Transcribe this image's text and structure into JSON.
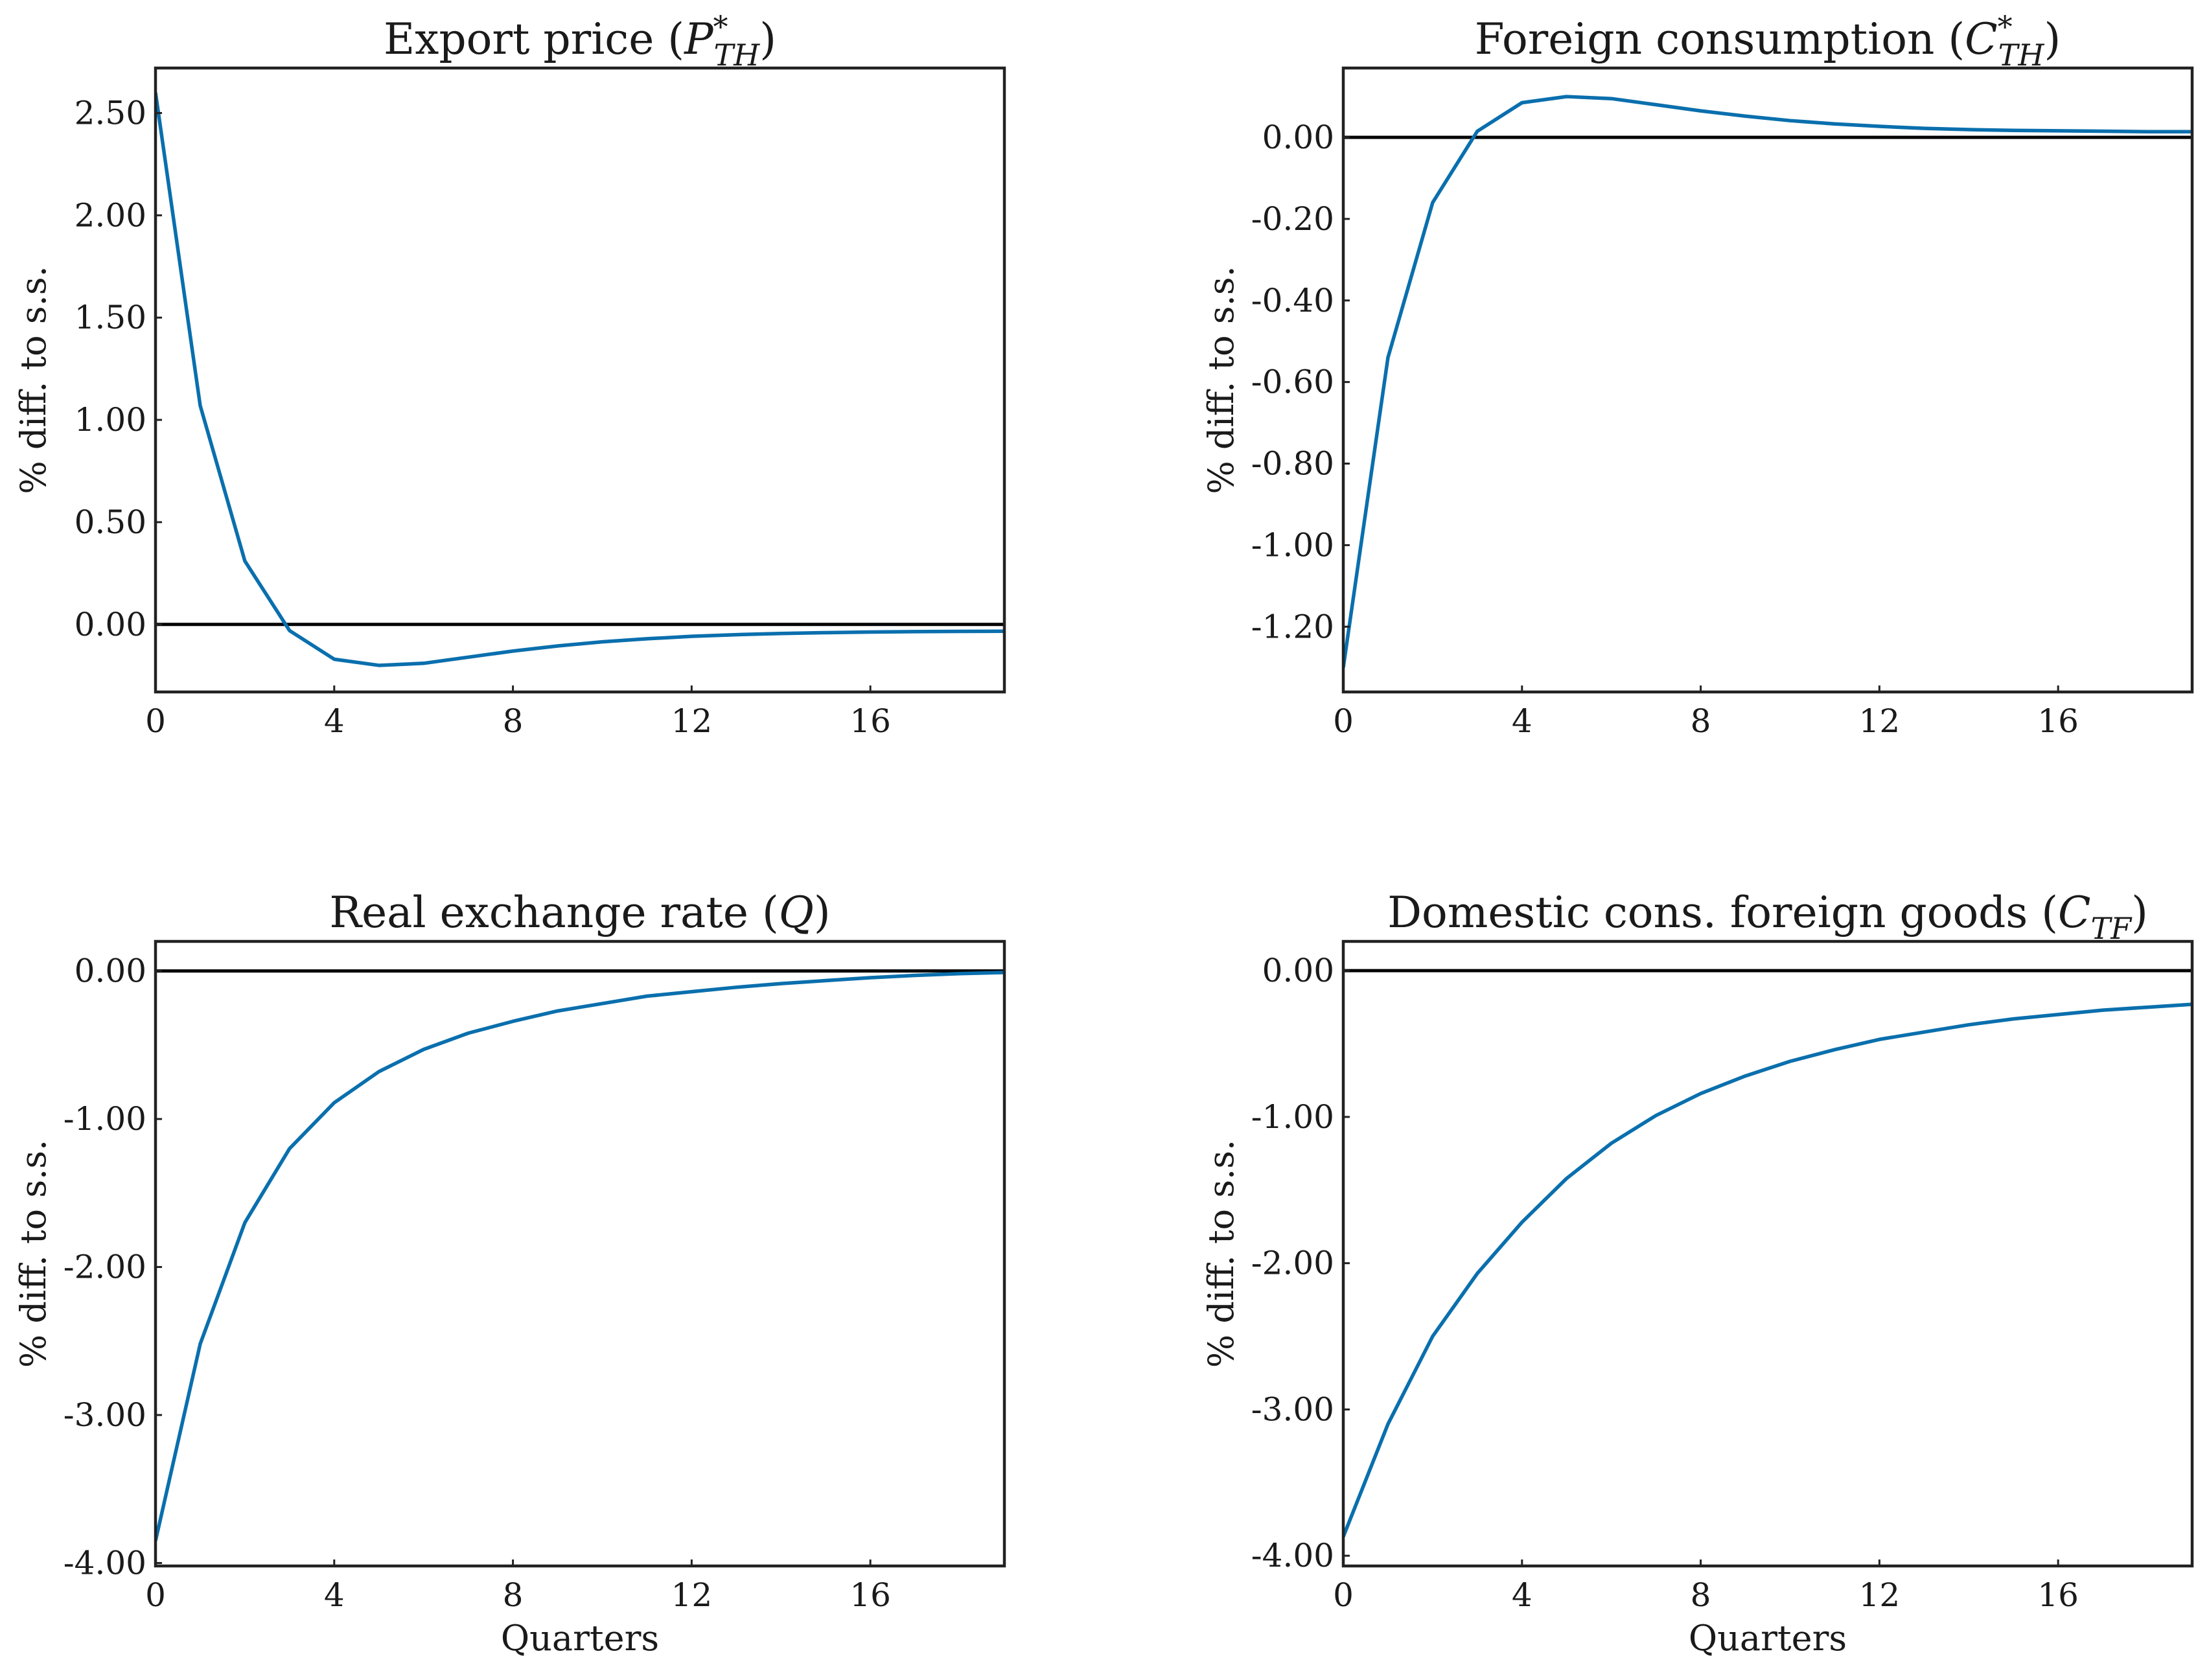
{
  "chart_data": [
    {
      "type": "line",
      "title": "Export price (P*TH)",
      "title_parts": [
        {
          "t": "Export price (",
          "style": "normal"
        },
        {
          "t": "P",
          "style": "italic"
        },
        {
          "t": "*",
          "style": "sup"
        },
        {
          "t": "TH",
          "style": "sub"
        },
        {
          "t": ")",
          "style": "normal"
        }
      ],
      "xlabel": "",
      "ylabel": "% diff. to s.s.",
      "xlim": [
        0,
        19
      ],
      "ylim": [
        -0.33,
        2.72
      ],
      "xticks": [
        0,
        4,
        8,
        12,
        16
      ],
      "xtick_labels": [
        "0",
        "4",
        "8",
        "12",
        "16"
      ],
      "yticks": [
        0,
        0.5,
        1,
        1.5,
        2,
        2.5
      ],
      "ytick_labels": [
        "0.00",
        "0.50",
        "1.00",
        "1.50",
        "2.00",
        "2.50"
      ],
      "zero_line": 0,
      "x": [
        0,
        1,
        2,
        3,
        4,
        5,
        6,
        7,
        8,
        9,
        10,
        11,
        12,
        13,
        14,
        15,
        16,
        17,
        18,
        19
      ],
      "series": [
        {
          "values": [
            2.6,
            1.07,
            0.31,
            -0.03,
            -0.17,
            -0.2,
            -0.19,
            -0.16,
            -0.13,
            -0.105,
            -0.085,
            -0.07,
            -0.058,
            -0.05,
            -0.044,
            -0.04,
            -0.037,
            -0.035,
            -0.034,
            -0.033
          ],
          "color": "#0a6fad"
        }
      ]
    },
    {
      "type": "line",
      "title": "Foreign consumption (C*TH)",
      "title_parts": [
        {
          "t": "Foreign consumption (",
          "style": "normal"
        },
        {
          "t": "C",
          "style": "italic"
        },
        {
          "t": "*",
          "style": "sup"
        },
        {
          "t": "TH",
          "style": "sub"
        },
        {
          "t": ")",
          "style": "normal"
        }
      ],
      "xlabel": "",
      "ylabel": "% diff. to s.s.",
      "xlim": [
        0,
        19
      ],
      "ylim": [
        -1.36,
        0.17
      ],
      "xticks": [
        0,
        4,
        8,
        12,
        16
      ],
      "xtick_labels": [
        "0",
        "4",
        "8",
        "12",
        "16"
      ],
      "yticks": [
        -1.2,
        -1.0,
        -0.8,
        -0.6,
        -0.4,
        -0.2,
        0
      ],
      "ytick_labels": [
        "-1.20",
        "-1.00",
        "-0.80",
        "-0.60",
        "-0.40",
        "-0.20",
        "0.00"
      ],
      "zero_line": 0,
      "x": [
        0,
        1,
        2,
        3,
        4,
        5,
        6,
        7,
        8,
        9,
        10,
        11,
        12,
        13,
        14,
        15,
        16,
        17,
        18,
        19
      ],
      "series": [
        {
          "values": [
            -1.3,
            -0.54,
            -0.16,
            0.015,
            0.085,
            0.1,
            0.095,
            0.08,
            0.065,
            0.052,
            0.041,
            0.033,
            0.027,
            0.022,
            0.019,
            0.017,
            0.016,
            0.015,
            0.014,
            0.014
          ],
          "color": "#0a6fad"
        }
      ]
    },
    {
      "type": "line",
      "title": "Real exchange rate (Q)",
      "title_parts": [
        {
          "t": "Real exchange rate (",
          "style": "normal"
        },
        {
          "t": "Q",
          "style": "italic"
        },
        {
          "t": ")",
          "style": "normal"
        }
      ],
      "xlabel": "Quarters",
      "ylabel": "% diff. to s.s.",
      "xlim": [
        0,
        19
      ],
      "ylim": [
        -4.02,
        0.2
      ],
      "xticks": [
        0,
        4,
        8,
        12,
        16
      ],
      "xtick_labels": [
        "0",
        "4",
        "8",
        "12",
        "16"
      ],
      "yticks": [
        -4,
        -3,
        -2,
        -1,
        0
      ],
      "ytick_labels": [
        "-4.00",
        "-3.00",
        "-2.00",
        "-1.00",
        "0.00"
      ],
      "zero_line": 0,
      "x": [
        0,
        1,
        2,
        3,
        4,
        5,
        6,
        7,
        8,
        9,
        10,
        11,
        12,
        13,
        14,
        15,
        16,
        17,
        18,
        19
      ],
      "series": [
        {
          "values": [
            -3.85,
            -2.52,
            -1.7,
            -1.2,
            -0.89,
            -0.68,
            -0.53,
            -0.42,
            -0.34,
            -0.27,
            -0.22,
            -0.17,
            -0.14,
            -0.11,
            -0.085,
            -0.065,
            -0.045,
            -0.03,
            -0.018,
            -0.01
          ],
          "color": "#0a6fad"
        }
      ]
    },
    {
      "type": "line",
      "title": "Domestic cons. foreign goods (CTF)",
      "title_parts": [
        {
          "t": "Domestic cons. foreign goods (",
          "style": "normal"
        },
        {
          "t": "C",
          "style": "italic"
        },
        {
          "t": "TF",
          "style": "sub"
        },
        {
          "t": ")",
          "style": "normal"
        }
      ],
      "xlabel": "Quarters",
      "ylabel": "% diff. to s.s.",
      "xlim": [
        0,
        19
      ],
      "ylim": [
        -4.07,
        0.2
      ],
      "xticks": [
        0,
        4,
        8,
        12,
        16
      ],
      "xtick_labels": [
        "0",
        "4",
        "8",
        "12",
        "16"
      ],
      "yticks": [
        -4,
        -3,
        -2,
        -1,
        0
      ],
      "ytick_labels": [
        "-4.00",
        "-3.00",
        "-2.00",
        "-1.00",
        "0.00"
      ],
      "zero_line": 0,
      "x": [
        0,
        1,
        2,
        3,
        4,
        5,
        6,
        7,
        8,
        9,
        10,
        11,
        12,
        13,
        14,
        15,
        16,
        17,
        18,
        19
      ],
      "series": [
        {
          "values": [
            -3.87,
            -3.1,
            -2.5,
            -2.07,
            -1.72,
            -1.42,
            -1.18,
            -0.99,
            -0.84,
            -0.72,
            -0.62,
            -0.54,
            -0.47,
            -0.42,
            -0.37,
            -0.33,
            -0.3,
            -0.27,
            -0.25,
            -0.23
          ],
          "color": "#0a6fad"
        }
      ]
    }
  ]
}
